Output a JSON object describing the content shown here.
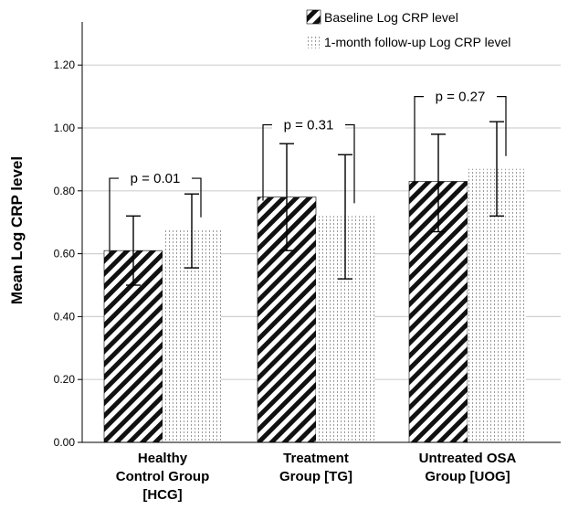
{
  "chart_data": {
    "type": "bar",
    "ylabel": "Mean Log CRP level",
    "xlabel": "",
    "ylim": [
      0,
      1.3
    ],
    "yticks": [
      "0.00",
      "0.20",
      "0.40",
      "0.60",
      "0.80",
      "1.00",
      "1.20"
    ],
    "ytick_values": [
      0,
      0.2,
      0.4,
      0.6,
      0.8,
      1.0,
      1.2
    ],
    "grid": true,
    "legend_position": "top-right",
    "categories": [
      [
        "Healthy",
        "Control Group",
        "[HCG]"
      ],
      [
        "Treatment",
        "Group [TG]"
      ],
      [
        "Untreated OSA",
        "Group [UOG]"
      ]
    ],
    "series": [
      {
        "name": "Baseline Log CRP level",
        "pattern": "diagonal-hatch",
        "values": [
          0.61,
          0.78,
          0.83
        ],
        "error_low": [
          0.5,
          0.61,
          0.67
        ],
        "error_high": [
          0.72,
          0.95,
          0.98
        ]
      },
      {
        "name": "1-month follow-up Log CRP level",
        "pattern": "dotted-vertical",
        "values": [
          0.675,
          0.72,
          0.87
        ],
        "error_low": [
          0.555,
          0.52,
          0.72
        ],
        "error_high": [
          0.79,
          0.915,
          1.02
        ]
      }
    ],
    "annotations": [
      {
        "text": "p = 0.01",
        "bracket_level": 0.84
      },
      {
        "text": "p = 0.31",
        "bracket_level": 1.01
      },
      {
        "text": "p = 0.27",
        "bracket_level": 1.1
      }
    ]
  }
}
